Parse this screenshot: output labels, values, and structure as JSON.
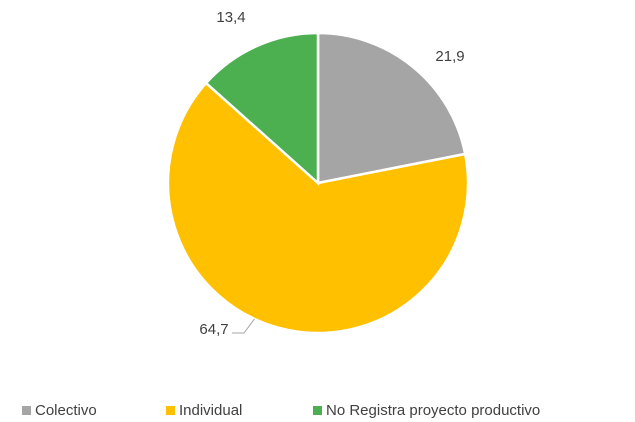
{
  "chart_data": {
    "type": "pie",
    "categories": [
      "Colectivo",
      "Individual",
      "No Registra proyecto productivo"
    ],
    "values": [
      21.9,
      64.7,
      13.4
    ],
    "value_labels": [
      "21,9",
      "64,7",
      "13,4"
    ],
    "colors": [
      "#a5a5a5",
      "#ffc000",
      "#4caf50"
    ],
    "legend": "bottom"
  }
}
